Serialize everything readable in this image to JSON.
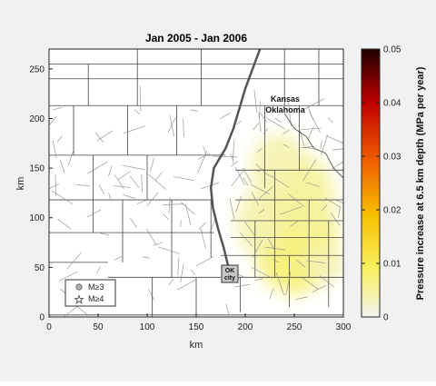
{
  "chart_data": {
    "type": "heatmap",
    "title": "Jan 2005 - Jan 2006",
    "xlabel": "km",
    "ylabel": "km",
    "xlim": [
      0,
      300
    ],
    "ylim": [
      0,
      270
    ],
    "xticks": [
      0,
      50,
      100,
      150,
      200,
      250,
      300
    ],
    "yticks": [
      0,
      50,
      100,
      150,
      200,
      250
    ],
    "colorbar": {
      "label": "Pressure increase at 6.5 km depth (MPa per year)",
      "range": [
        0,
        0.05
      ],
      "ticks": [
        0,
        0.01,
        0.02,
        0.03,
        0.04,
        0.05
      ],
      "tick_labels": [
        "0",
        "0.01",
        "0.02",
        "0.03",
        "0.04",
        "0.05"
      ],
      "colors": [
        "#f4f4f0",
        "#f8f060",
        "#f8c000",
        "#f06000",
        "#c00000",
        "#200000"
      ]
    },
    "pressure_hotspots": [
      {
        "x": 250,
        "y": 80,
        "value": 0.008
      },
      {
        "x": 235,
        "y": 150,
        "value": 0.004
      },
      {
        "x": 265,
        "y": 120,
        "value": 0.005
      },
      {
        "x": 215,
        "y": 95,
        "value": 0.004
      },
      {
        "x": 265,
        "y": 40,
        "value": 0.02
      },
      {
        "x": 250,
        "y": 50,
        "value": 0.007
      },
      {
        "x": 280,
        "y": 55,
        "value": 0.004
      }
    ],
    "state_border_y": 213,
    "state_labels": {
      "north": "Kansas",
      "south": "Oklahoma"
    },
    "city_label": "OK city",
    "legend": {
      "position": "bottom-left",
      "items": [
        {
          "symbol": "circle",
          "label": "M≥3"
        },
        {
          "symbol": "star",
          "label": "M≥4"
        }
      ]
    },
    "nemaha_line_km": [
      [
        215,
        270
      ],
      [
        200,
        230
      ],
      [
        188,
        190
      ],
      [
        180,
        170
      ],
      [
        168,
        150
      ],
      [
        165,
        130
      ],
      [
        167,
        110
      ],
      [
        172,
        90
      ],
      [
        178,
        70
      ],
      [
        183,
        50
      ]
    ]
  }
}
